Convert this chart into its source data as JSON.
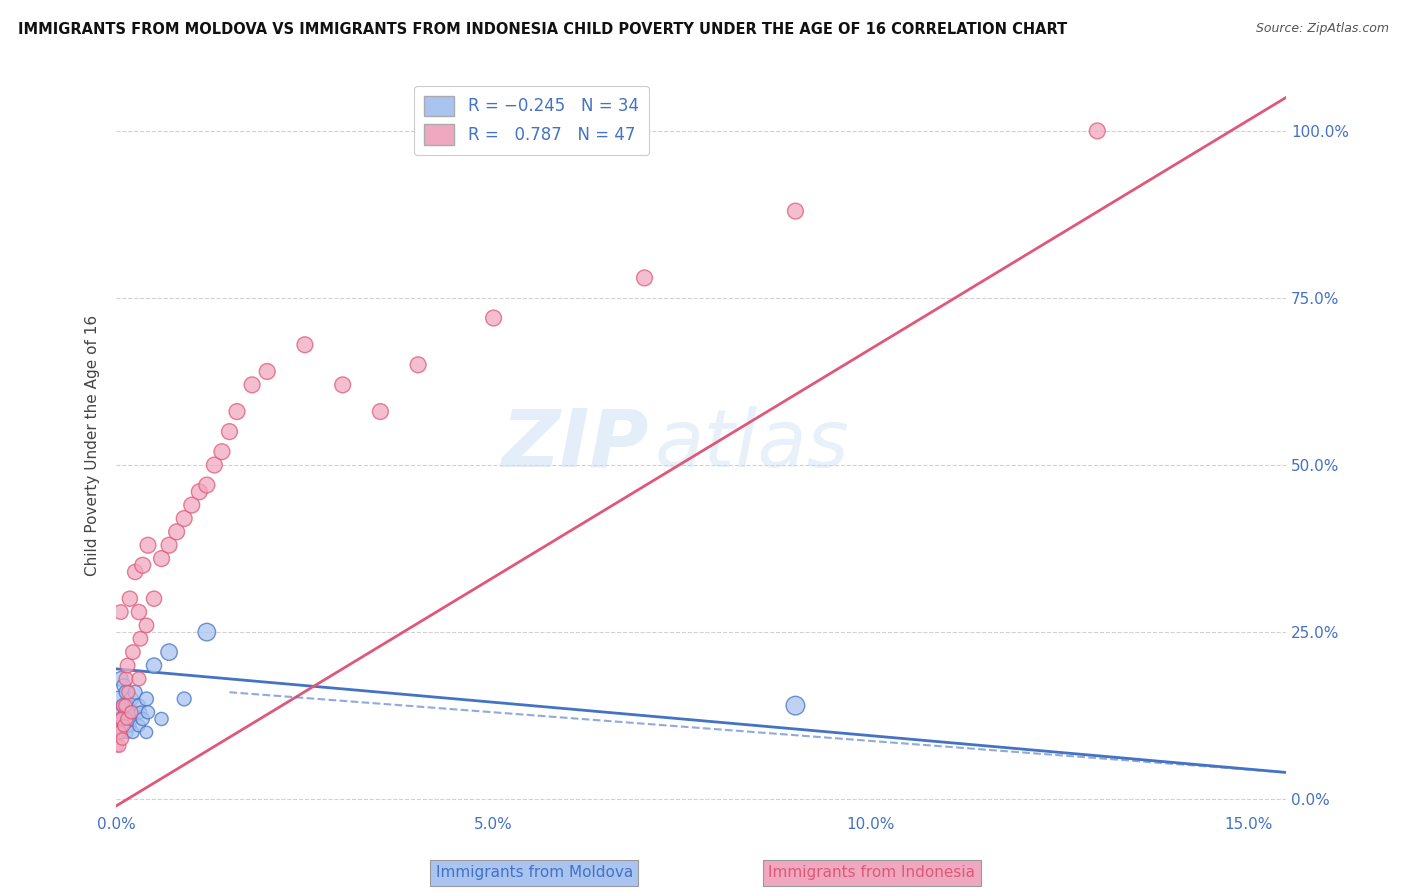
{
  "title": "IMMIGRANTS FROM MOLDOVA VS IMMIGRANTS FROM INDONESIA CHILD POVERTY UNDER THE AGE OF 16 CORRELATION CHART",
  "source": "Source: ZipAtlas.com",
  "xlim": [
    0.0,
    0.155
  ],
  "ylim": [
    -0.02,
    1.08
  ],
  "ylabel": "Child Poverty Under the Age of 16",
  "color_moldova": "#aac4f0",
  "color_indonesia": "#f0a8c0",
  "color_moldova_line": "#4472c4",
  "color_indonesia_line": "#e05878",
  "color_text_blue": "#4472c4",
  "watermark_zip": "ZIP",
  "watermark_atlas": "atlas",
  "xtick_vals": [
    0.0,
    0.05,
    0.1,
    0.15
  ],
  "xtick_labels": [
    "0.0%",
    "5.0%",
    "10.0%",
    "15.0%"
  ],
  "ytick_vals": [
    0.0,
    0.25,
    0.5,
    0.75,
    1.0
  ],
  "ytick_labels": [
    "0.0%",
    "25.0%",
    "50.0%",
    "75.0%",
    "100.0%"
  ],
  "moldova_x": [
    0.0002,
    0.0004,
    0.0005,
    0.0006,
    0.0007,
    0.0008,
    0.0009,
    0.001,
    0.001,
    0.0012,
    0.0013,
    0.0014,
    0.0015,
    0.0016,
    0.0017,
    0.0018,
    0.002,
    0.002,
    0.0022,
    0.0024,
    0.0025,
    0.003,
    0.003,
    0.0032,
    0.0035,
    0.004,
    0.004,
    0.0042,
    0.005,
    0.006,
    0.007,
    0.009,
    0.012,
    0.09
  ],
  "moldova_y": [
    0.15,
    0.1,
    0.13,
    0.18,
    0.12,
    0.1,
    0.14,
    0.12,
    0.17,
    0.13,
    0.16,
    0.1,
    0.14,
    0.12,
    0.13,
    0.11,
    0.12,
    0.15,
    0.1,
    0.13,
    0.16,
    0.11,
    0.14,
    0.13,
    0.12,
    0.1,
    0.15,
    0.13,
    0.2,
    0.12,
    0.22,
    0.15,
    0.25,
    0.14
  ],
  "moldova_size": [
    120,
    90,
    100,
    110,
    90,
    80,
    100,
    90,
    100,
    90,
    100,
    80,
    90,
    80,
    90,
    80,
    90,
    100,
    80,
    90,
    100,
    80,
    90,
    80,
    90,
    80,
    100,
    90,
    120,
    90,
    140,
    100,
    160,
    180
  ],
  "indonesia_x": [
    0.0001,
    0.0002,
    0.0003,
    0.0004,
    0.0005,
    0.0006,
    0.0007,
    0.0008,
    0.0009,
    0.001,
    0.0012,
    0.0013,
    0.0014,
    0.0015,
    0.0016,
    0.0018,
    0.002,
    0.0022,
    0.0025,
    0.003,
    0.003,
    0.0032,
    0.0035,
    0.004,
    0.0042,
    0.005,
    0.006,
    0.007,
    0.008,
    0.009,
    0.01,
    0.011,
    0.012,
    0.013,
    0.014,
    0.015,
    0.016,
    0.018,
    0.02,
    0.025,
    0.03,
    0.035,
    0.04,
    0.05,
    0.07,
    0.09,
    0.13
  ],
  "indonesia_y": [
    0.08,
    0.1,
    0.12,
    0.08,
    0.1,
    0.28,
    0.12,
    0.09,
    0.14,
    0.11,
    0.14,
    0.18,
    0.12,
    0.2,
    0.16,
    0.3,
    0.13,
    0.22,
    0.34,
    0.18,
    0.28,
    0.24,
    0.35,
    0.26,
    0.38,
    0.3,
    0.36,
    0.38,
    0.4,
    0.42,
    0.44,
    0.46,
    0.47,
    0.5,
    0.52,
    0.55,
    0.58,
    0.62,
    0.64,
    0.68,
    0.62,
    0.58,
    0.65,
    0.72,
    0.78,
    0.88,
    1.0
  ],
  "indonesia_size": [
    80,
    90,
    80,
    90,
    90,
    110,
    90,
    80,
    90,
    80,
    90,
    100,
    80,
    110,
    90,
    120,
    90,
    110,
    120,
    100,
    120,
    110,
    130,
    110,
    130,
    120,
    130,
    130,
    130,
    130,
    130,
    130,
    130,
    130,
    130,
    130,
    130,
    130,
    130,
    130,
    130,
    130,
    130,
    130,
    130,
    130,
    130
  ],
  "moldova_line_x": [
    0.0,
    0.155
  ],
  "moldova_line_y": [
    0.195,
    0.04
  ],
  "indonesia_line_x": [
    0.0,
    0.155
  ],
  "indonesia_line_y": [
    -0.01,
    1.05
  ]
}
